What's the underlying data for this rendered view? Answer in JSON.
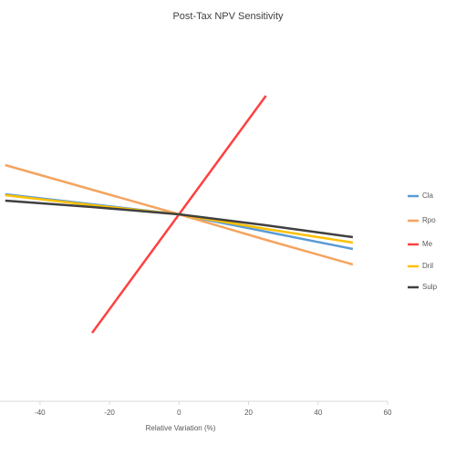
{
  "chart_data": {
    "type": "line",
    "title": "Post-Tax NPV Sensitivity",
    "x_label": "Relative Variation (%)",
    "x": [
      -50,
      -25,
      0,
      25,
      50
    ],
    "series": [
      {
        "name": "Cla",
        "color": "#5b9bd5",
        "values": [
          22,
          11,
          0,
          -19,
          -38
        ]
      },
      {
        "name": "Rpo",
        "color": "#f4a460",
        "values": [
          54,
          27,
          0,
          -28,
          -55
        ]
      },
      {
        "name": "Me",
        "color": "#ff4040",
        "values": [
          null,
          -130,
          0,
          130,
          null
        ]
      },
      {
        "name": "Dril",
        "color": "#ffc000",
        "values": [
          21,
          10,
          0,
          -16,
          -31
        ]
      },
      {
        "name": "Sulp",
        "color": "#404040",
        "values": [
          15,
          8,
          0,
          -12,
          -25
        ]
      }
    ],
    "xlim": [
      -51.5,
      60
    ],
    "xticks": [
      -40,
      -20,
      0,
      20,
      40,
      60
    ],
    "ylim": [
      -205,
      225
    ],
    "legend": "right"
  }
}
